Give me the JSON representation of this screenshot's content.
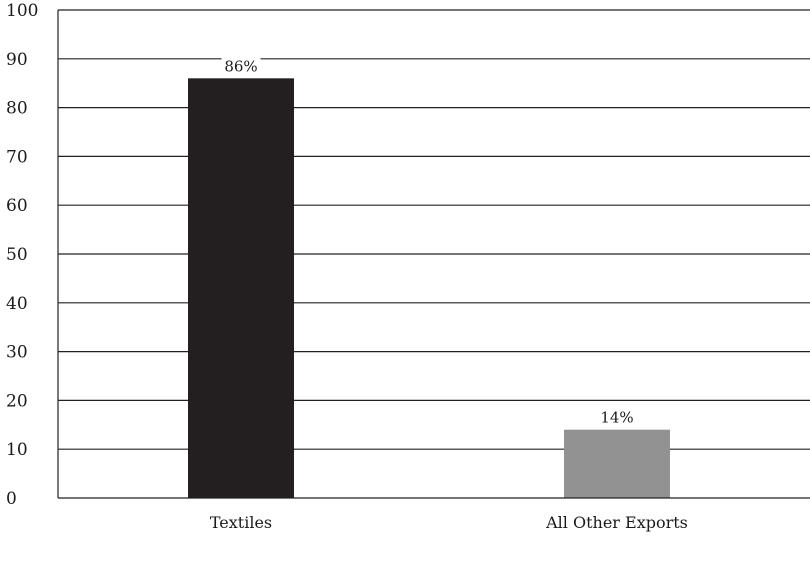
{
  "chart_data": {
    "type": "bar",
    "categories": [
      "Textiles",
      "All Other Exports"
    ],
    "values": [
      86,
      14
    ],
    "data_labels": [
      "86%",
      "14%"
    ],
    "title": "",
    "xlabel": "",
    "ylabel": "",
    "ylim": [
      0,
      100
    ],
    "y_ticks": [
      0,
      10,
      20,
      30,
      40,
      50,
      60,
      70,
      80,
      90,
      100
    ],
    "grid": true,
    "legend": "none",
    "bar_colors": [
      "#231f20",
      "#929292"
    ]
  }
}
